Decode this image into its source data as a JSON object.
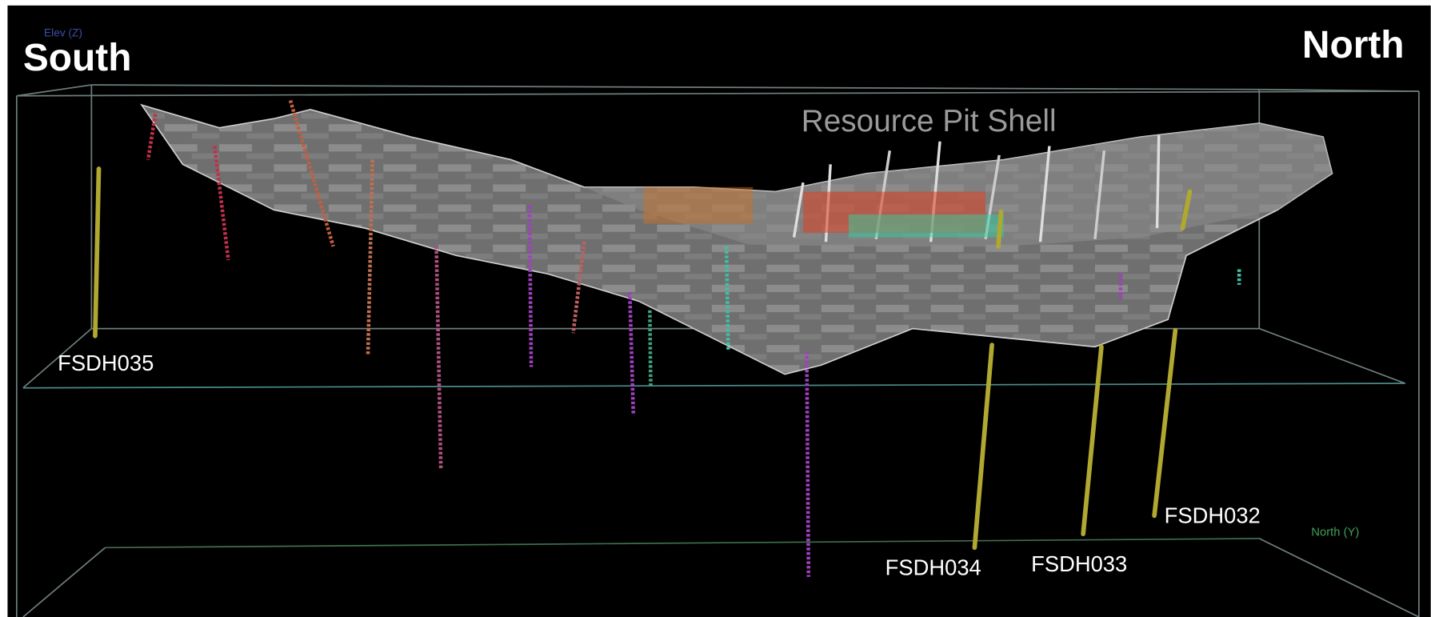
{
  "axes": {
    "vertical": "Elev (Z)",
    "horizontal": "North (Y)"
  },
  "directions": {
    "left": "South",
    "right": "North"
  },
  "pit_shell": {
    "label": "Resource Pit Shell"
  },
  "drill_holes": [
    "FSDH035",
    "FSDH034",
    "FSDH033",
    "FSDH032"
  ]
}
